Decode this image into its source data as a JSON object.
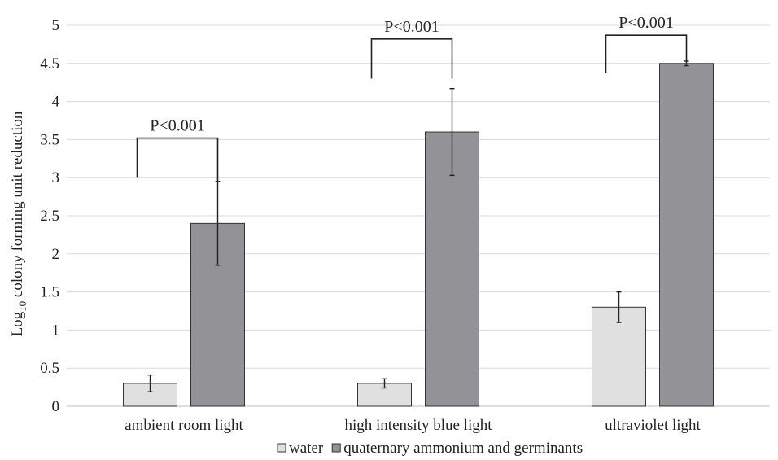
{
  "chart_data": {
    "type": "bar",
    "categories": [
      "ambient room light",
      "high intensity blue light",
      "ultraviolet light"
    ],
    "series": [
      {
        "name": "water",
        "values": [
          0.3,
          0.3,
          1.3
        ],
        "errors": [
          0.11,
          0.06,
          0.2
        ],
        "color": "#e0e0e0"
      },
      {
        "name": "quaternary ammonium and germinants",
        "values": [
          2.4,
          3.6,
          4.5
        ],
        "errors": [
          0.55,
          0.57,
          0.03
        ],
        "color": "#939397"
      }
    ],
    "title": "",
    "xlabel": "",
    "ylabel": {
      "base": "Log",
      "subscript": "10",
      "rest": " colony forming unit reduction"
    },
    "ylim": [
      0,
      5
    ],
    "yticks": [
      0,
      0.5,
      1,
      1.5,
      2,
      2.5,
      3,
      3.5,
      4,
      4.5,
      5
    ],
    "grid": true,
    "legend": "bottom",
    "annotations": [
      {
        "category": 0,
        "text": "P<0.001",
        "left_tick_bottom": 3.0,
        "right_tick_bottom": 2.95,
        "bracket_top": 3.52
      },
      {
        "category": 1,
        "text": "P<0.001",
        "left_tick_bottom": 4.3,
        "right_tick_bottom": 4.3,
        "bracket_top": 4.82
      },
      {
        "category": 2,
        "text": "P<0.001",
        "left_tick_bottom": 4.37,
        "right_tick_bottom": 4.52,
        "bracket_top": 4.87
      }
    ]
  }
}
